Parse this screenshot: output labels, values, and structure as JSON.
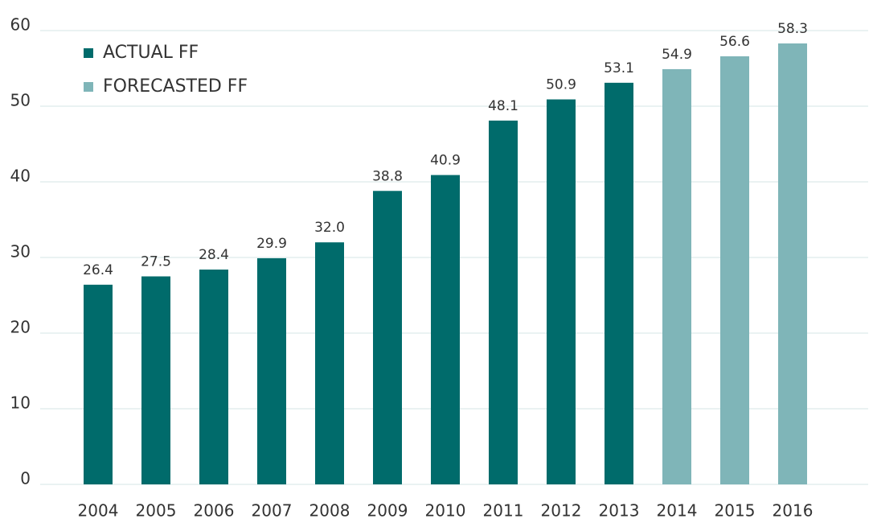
{
  "chart_data": {
    "type": "bar",
    "categories": [
      "2004",
      "2005",
      "2006",
      "2007",
      "2008",
      "2009",
      "2010",
      "2011",
      "2012",
      "2013",
      "2014",
      "2015",
      "2016"
    ],
    "series": [
      {
        "name": "ACTUAL FF",
        "color": "#006b6b",
        "values": [
          26.4,
          27.5,
          28.4,
          29.9,
          32.0,
          38.8,
          40.9,
          48.1,
          50.9,
          53.1,
          null,
          null,
          null
        ],
        "value_labels": [
          "26.4",
          "27.5",
          "28.4",
          "29.9",
          "32.0",
          "38.8",
          "40.9",
          "48.1",
          "50.9",
          "53.1",
          null,
          null,
          null
        ]
      },
      {
        "name": "FORECASTED FF",
        "color": "#7fb5b8",
        "values": [
          null,
          null,
          null,
          null,
          null,
          null,
          null,
          null,
          null,
          null,
          54.9,
          56.6,
          58.3
        ],
        "value_labels": [
          null,
          null,
          null,
          null,
          null,
          null,
          null,
          null,
          null,
          null,
          "54.9",
          "56.6",
          "58.3"
        ]
      }
    ],
    "ylim": [
      0,
      60
    ],
    "yticks": [
      0,
      10,
      20,
      30,
      40,
      50,
      60
    ],
    "grid": true,
    "legend": "upper left"
  }
}
